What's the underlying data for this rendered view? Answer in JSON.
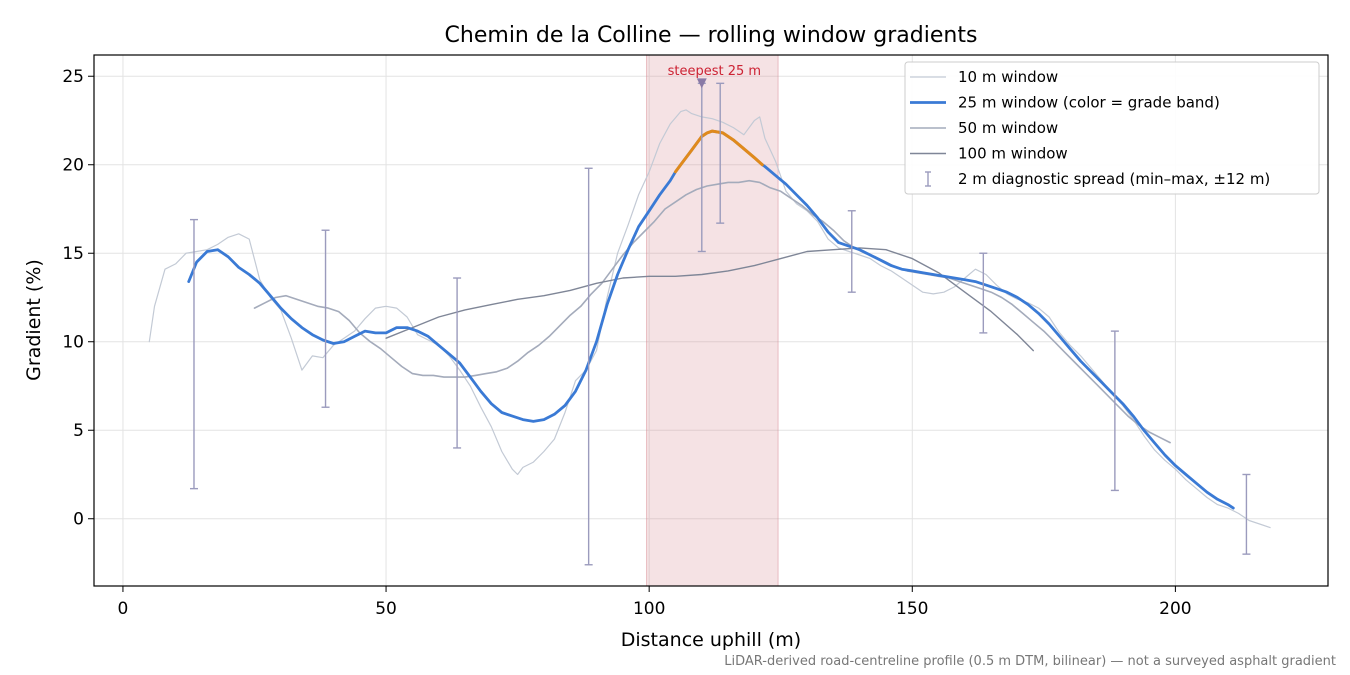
{
  "chart_data": {
    "type": "line",
    "title": "Chemin de la Colline — rolling window gradients",
    "xlabel": "Distance uphill (m)",
    "ylabel": "Gradient (%)",
    "xlim": [
      -5.5,
      229
    ],
    "ylim": [
      -3.8,
      26.2
    ],
    "xticks": [
      0,
      50,
      100,
      150,
      200
    ],
    "yticks": [
      0,
      5,
      10,
      15,
      20,
      25
    ],
    "grid": true,
    "legend_position": "top-right",
    "footnote": "LiDAR-derived road-centreline profile (0.5 m DTM, bilinear) — not a surveyed asphalt gradient",
    "highlight": {
      "x_range": [
        99.5,
        124.5
      ],
      "label": "steepest 25 m",
      "marker": [
        110,
        24.6
      ],
      "color": "#d98a94"
    },
    "series": [
      {
        "name": "10 m window",
        "color": "#c3cad5",
        "width": 1.2,
        "x": [
          5,
          6,
          8,
          10,
          12,
          14,
          16,
          18,
          20,
          22,
          24,
          26,
          28,
          30,
          32,
          34,
          36,
          38,
          40,
          42,
          44,
          46,
          48,
          50,
          52,
          54,
          56,
          58,
          60,
          62,
          64,
          66,
          68,
          70,
          72,
          74,
          75,
          76,
          78,
          80,
          82,
          84,
          86,
          88,
          90,
          92,
          94,
          96,
          98,
          100,
          102,
          104,
          106,
          107,
          108,
          110,
          112,
          114,
          116,
          118,
          120,
          121,
          122,
          124,
          126,
          128,
          130,
          132,
          134,
          136,
          138,
          140,
          142,
          144,
          146,
          148,
          150,
          152,
          154,
          156,
          158,
          160,
          162,
          164,
          166,
          168,
          170,
          172,
          174,
          176,
          178,
          180,
          182,
          184,
          186,
          188,
          190,
          192,
          194,
          196,
          198,
          200,
          202,
          204,
          206,
          208,
          210,
          212,
          214,
          216,
          218
        ],
        "values": [
          10,
          12,
          14.1,
          14.4,
          15,
          15.1,
          15.2,
          15.5,
          15.9,
          16.1,
          15.8,
          13.5,
          12.5,
          11.8,
          10.2,
          8.4,
          9.2,
          9.1,
          9.8,
          10.2,
          10.6,
          11.3,
          11.9,
          12,
          11.9,
          11.4,
          10.4,
          10.1,
          9.8,
          9.2,
          8.4,
          7.5,
          6.3,
          5.2,
          3.8,
          2.8,
          2.5,
          2.9,
          3.2,
          3.8,
          4.5,
          6,
          7.8,
          8.4,
          9.5,
          12.5,
          15,
          16.6,
          18.3,
          19.6,
          21.2,
          22.3,
          23,
          23.1,
          22.9,
          22.7,
          22.6,
          22.4,
          22.1,
          21.7,
          22.5,
          22.7,
          21.5,
          20.2,
          18.5,
          17.8,
          17.4,
          16.8,
          15.8,
          15.3,
          15.1,
          14.9,
          14.7,
          14.3,
          14,
          13.6,
          13.2,
          12.8,
          12.7,
          12.8,
          13.1,
          13.6,
          14.1,
          13.8,
          13.2,
          12.7,
          12.4,
          12.2,
          11.9,
          11.4,
          10.5,
          9.8,
          9.2,
          8.5,
          7.8,
          7.1,
          6.4,
          5.6,
          4.7,
          3.9,
          3.3,
          2.8,
          2.2,
          1.7,
          1.2,
          0.8,
          0.6,
          0.3,
          -0.1,
          -0.3,
          -0.5
        ]
      },
      {
        "name": "25 m window (color = grade band)",
        "color": "#3a7ad5",
        "width": 2.8,
        "x": [
          12.5,
          14,
          16,
          18,
          20,
          22,
          24,
          26,
          28,
          30,
          32,
          34,
          36,
          38,
          40,
          42,
          44,
          46,
          48,
          50,
          52,
          54,
          56,
          58,
          60,
          62,
          64,
          66,
          68,
          70,
          72,
          74,
          76,
          78,
          80,
          82,
          84,
          86,
          88,
          90,
          92,
          94,
          96,
          98,
          100,
          102,
          104,
          105,
          106,
          108,
          110,
          111,
          112,
          114,
          116,
          118,
          120,
          121.5,
          122,
          124,
          126,
          128,
          130,
          132,
          134,
          136,
          138,
          140,
          142,
          144,
          146,
          148,
          150,
          152,
          154,
          156,
          158,
          160,
          162,
          164,
          166,
          168,
          170,
          172,
          174,
          176,
          178,
          180,
          182,
          184,
          186,
          188,
          190,
          192,
          194,
          196,
          198,
          200,
          202,
          204,
          206,
          208,
          210,
          211
        ],
        "values": [
          13.4,
          14.5,
          15.1,
          15.2,
          14.8,
          14.2,
          13.8,
          13.3,
          12.6,
          11.9,
          11.3,
          10.8,
          10.4,
          10.1,
          9.9,
          10,
          10.3,
          10.6,
          10.5,
          10.5,
          10.8,
          10.8,
          10.6,
          10.3,
          9.8,
          9.3,
          8.8,
          8,
          7.2,
          6.5,
          6,
          5.8,
          5.6,
          5.5,
          5.6,
          5.9,
          6.4,
          7.2,
          8.4,
          10,
          12.1,
          13.8,
          15.2,
          16.5,
          17.4,
          18.3,
          19.1,
          19.6,
          20,
          20.8,
          21.6,
          21.8,
          21.9,
          21.8,
          21.4,
          20.9,
          20.4,
          20,
          19.9,
          19.4,
          18.9,
          18.3,
          17.7,
          17,
          16.2,
          15.6,
          15.4,
          15.2,
          14.9,
          14.6,
          14.3,
          14.1,
          14,
          13.9,
          13.8,
          13.7,
          13.6,
          13.5,
          13.4,
          13.2,
          13,
          12.8,
          12.5,
          12.1,
          11.6,
          11,
          10.3,
          9.6,
          8.9,
          8.3,
          7.7,
          7.1,
          6.5,
          5.8,
          5,
          4.3,
          3.6,
          3,
          2.5,
          2,
          1.5,
          1.1,
          0.8,
          0.6
        ],
        "band_color": "#e08a1c",
        "band_x_range": [
          105,
          121.5
        ]
      },
      {
        "name": "50 m window",
        "color": "#a4abbb",
        "width": 1.6,
        "x": [
          25,
          27,
          29,
          31,
          33,
          35,
          37,
          39,
          41,
          43,
          45,
          47,
          49,
          51,
          53,
          55,
          57,
          59,
          61,
          63,
          65,
          67,
          69,
          71,
          73,
          75,
          77,
          79,
          81,
          83,
          85,
          87,
          89,
          91,
          93,
          95,
          97,
          99,
          101,
          103,
          105,
          107,
          109,
          111,
          113,
          115,
          117,
          119,
          121,
          123,
          125,
          127,
          129,
          131,
          133,
          135,
          137,
          139,
          141,
          143,
          145,
          147,
          149,
          151,
          153,
          155,
          157,
          159,
          161,
          163,
          165,
          167,
          169,
          171,
          173,
          175,
          177,
          179,
          181,
          183,
          185,
          187,
          189,
          191,
          193,
          195,
          197,
          199
        ],
        "values": [
          11.9,
          12.2,
          12.5,
          12.6,
          12.4,
          12.2,
          12,
          11.9,
          11.7,
          11.2,
          10.5,
          10,
          9.6,
          9.1,
          8.6,
          8.2,
          8.1,
          8.1,
          8,
          8,
          8,
          8.1,
          8.2,
          8.3,
          8.5,
          8.9,
          9.4,
          9.8,
          10.3,
          10.9,
          11.5,
          12,
          12.7,
          13.3,
          14.1,
          14.9,
          15.6,
          16.2,
          16.8,
          17.5,
          17.9,
          18.3,
          18.6,
          18.8,
          18.9,
          19,
          19,
          19.1,
          19,
          18.7,
          18.5,
          18.1,
          17.7,
          17.2,
          16.8,
          16.3,
          15.7,
          15.3,
          15,
          14.8,
          14.5,
          14.2,
          14,
          13.9,
          13.8,
          13.7,
          13.6,
          13.4,
          13.2,
          13,
          12.8,
          12.5,
          12.1,
          11.6,
          11.1,
          10.6,
          10,
          9.4,
          8.8,
          8.2,
          7.6,
          7,
          6.4,
          5.8,
          5.3,
          4.9,
          4.6,
          4.3
        ]
      },
      {
        "name": "100 m window",
        "color": "#7f8697",
        "width": 1.4,
        "x": [
          50,
          55,
          60,
          65,
          70,
          75,
          80,
          85,
          90,
          95,
          100,
          105,
          110,
          115,
          120,
          125,
          130,
          135,
          140,
          145,
          150,
          155,
          160,
          165,
          170,
          173
        ],
        "values": [
          10.2,
          10.8,
          11.4,
          11.8,
          12.1,
          12.4,
          12.6,
          12.9,
          13.3,
          13.6,
          13.7,
          13.7,
          13.8,
          14,
          14.3,
          14.7,
          15.1,
          15.2,
          15.3,
          15.2,
          14.7,
          13.9,
          12.8,
          11.7,
          10.4,
          9.5
        ]
      }
    ],
    "error_bars": {
      "name": "2 m diagnostic spread (min–max, ±12 m)",
      "color": "#9b9bbd",
      "x": [
        13.5,
        38.5,
        63.5,
        88.5,
        110,
        113.5,
        138.5,
        163.5,
        188.5,
        213.5
      ],
      "min": [
        1.7,
        6.3,
        4,
        -2.6,
        15.1,
        16.7,
        12.8,
        10.5,
        1.6,
        -2
      ],
      "max": [
        16.9,
        16.3,
        13.6,
        19.8,
        24.6,
        24.6,
        17.4,
        15,
        10.6,
        2.5
      ]
    }
  }
}
